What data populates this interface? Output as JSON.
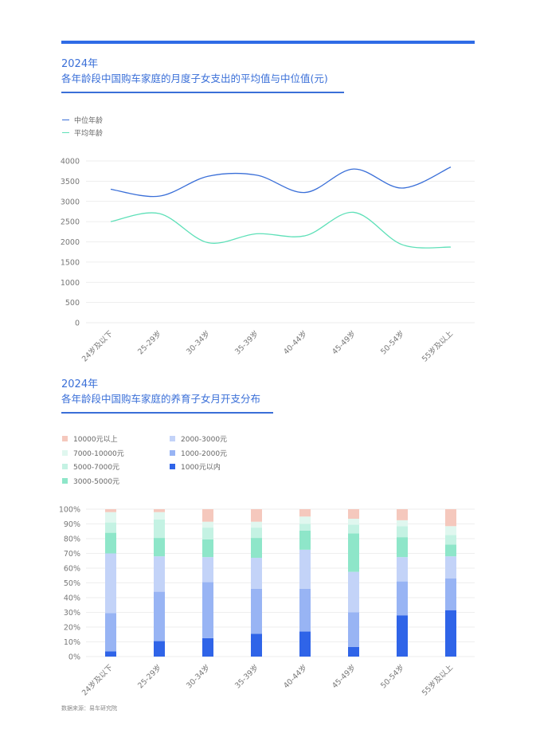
{
  "chart_data": [
    {
      "type": "line",
      "year_label": "2024年",
      "title": "各年龄段中国购车家庭的月度子女支出的平均值与中位值(元)",
      "categories": [
        "24岁及以下",
        "25-29岁",
        "30-34岁",
        "35-39岁",
        "40-44岁",
        "45-49岁",
        "50-54岁",
        "55岁及以上"
      ],
      "series": [
        {
          "name": "中位年龄",
          "color": "#3a6fd8",
          "values": [
            3300,
            3130,
            3620,
            3650,
            3220,
            3800,
            3330,
            3850
          ]
        },
        {
          "name": "平均年龄",
          "color": "#5ee0b8",
          "values": [
            2500,
            2700,
            1980,
            2200,
            2150,
            2730,
            1930,
            1870
          ]
        }
      ],
      "ylim": [
        0,
        4000
      ],
      "yticks": [
        "0",
        "500",
        "1000",
        "1500",
        "2000",
        "2500",
        "3000",
        "3500",
        "4000"
      ],
      "grid": true,
      "legend_position": "top-left"
    },
    {
      "type": "bar",
      "stacked": true,
      "year_label": "2024年",
      "title": "各年龄段中国购车家庭的养育子女月开支分布",
      "categories": [
        "24岁及以下",
        "25-29岁",
        "30-34岁",
        "35-39岁",
        "40-44岁",
        "45-49岁",
        "50-54岁",
        "55岁及以上"
      ],
      "series": [
        {
          "name": "1000元以内",
          "color": "#2f64e8",
          "values": [
            3.5,
            10.5,
            12.5,
            15.5,
            17,
            6.5,
            28,
            31.5
          ]
        },
        {
          "name": "1000-2000元",
          "color": "#98b4f4",
          "values": [
            26,
            33.5,
            38,
            30.5,
            29,
            23.5,
            23,
            21.5
          ]
        },
        {
          "name": "2000-3000元",
          "color": "#c3d3f8",
          "values": [
            40.5,
            24,
            17,
            21,
            26.5,
            27.5,
            16.5,
            15
          ]
        },
        {
          "name": "3000-5000元",
          "color": "#8ee6c9",
          "values": [
            14,
            12.5,
            12,
            13.5,
            13,
            26,
            13.5,
            8
          ]
        },
        {
          "name": "5000-7000元",
          "color": "#c4f2e3",
          "values": [
            7,
            12.5,
            8,
            7,
            4.5,
            6,
            7.5,
            6.5
          ]
        },
        {
          "name": "7000-10000元",
          "color": "#e0f7ef",
          "values": [
            7,
            5,
            4,
            4,
            5,
            4,
            4,
            6
          ]
        },
        {
          "name": "10000元以上",
          "color": "#f5c8bd",
          "values": [
            2,
            2,
            8.5,
            8.5,
            5,
            6.5,
            7.5,
            11.5
          ]
        }
      ],
      "ylim": [
        0,
        100
      ],
      "yticks": [
        "0%",
        "10%",
        "20%",
        "30%",
        "40%",
        "50%",
        "60%",
        "70%",
        "80%",
        "90%",
        "100%"
      ],
      "legend_order": [
        "10000元以上",
        "2000-3000元",
        "7000-10000元",
        "1000-2000元",
        "5000-7000元",
        "1000元以内",
        "3000-5000元"
      ],
      "grid": true,
      "legend_position": "top-left"
    }
  ],
  "source": "数据来源：易车研究院"
}
